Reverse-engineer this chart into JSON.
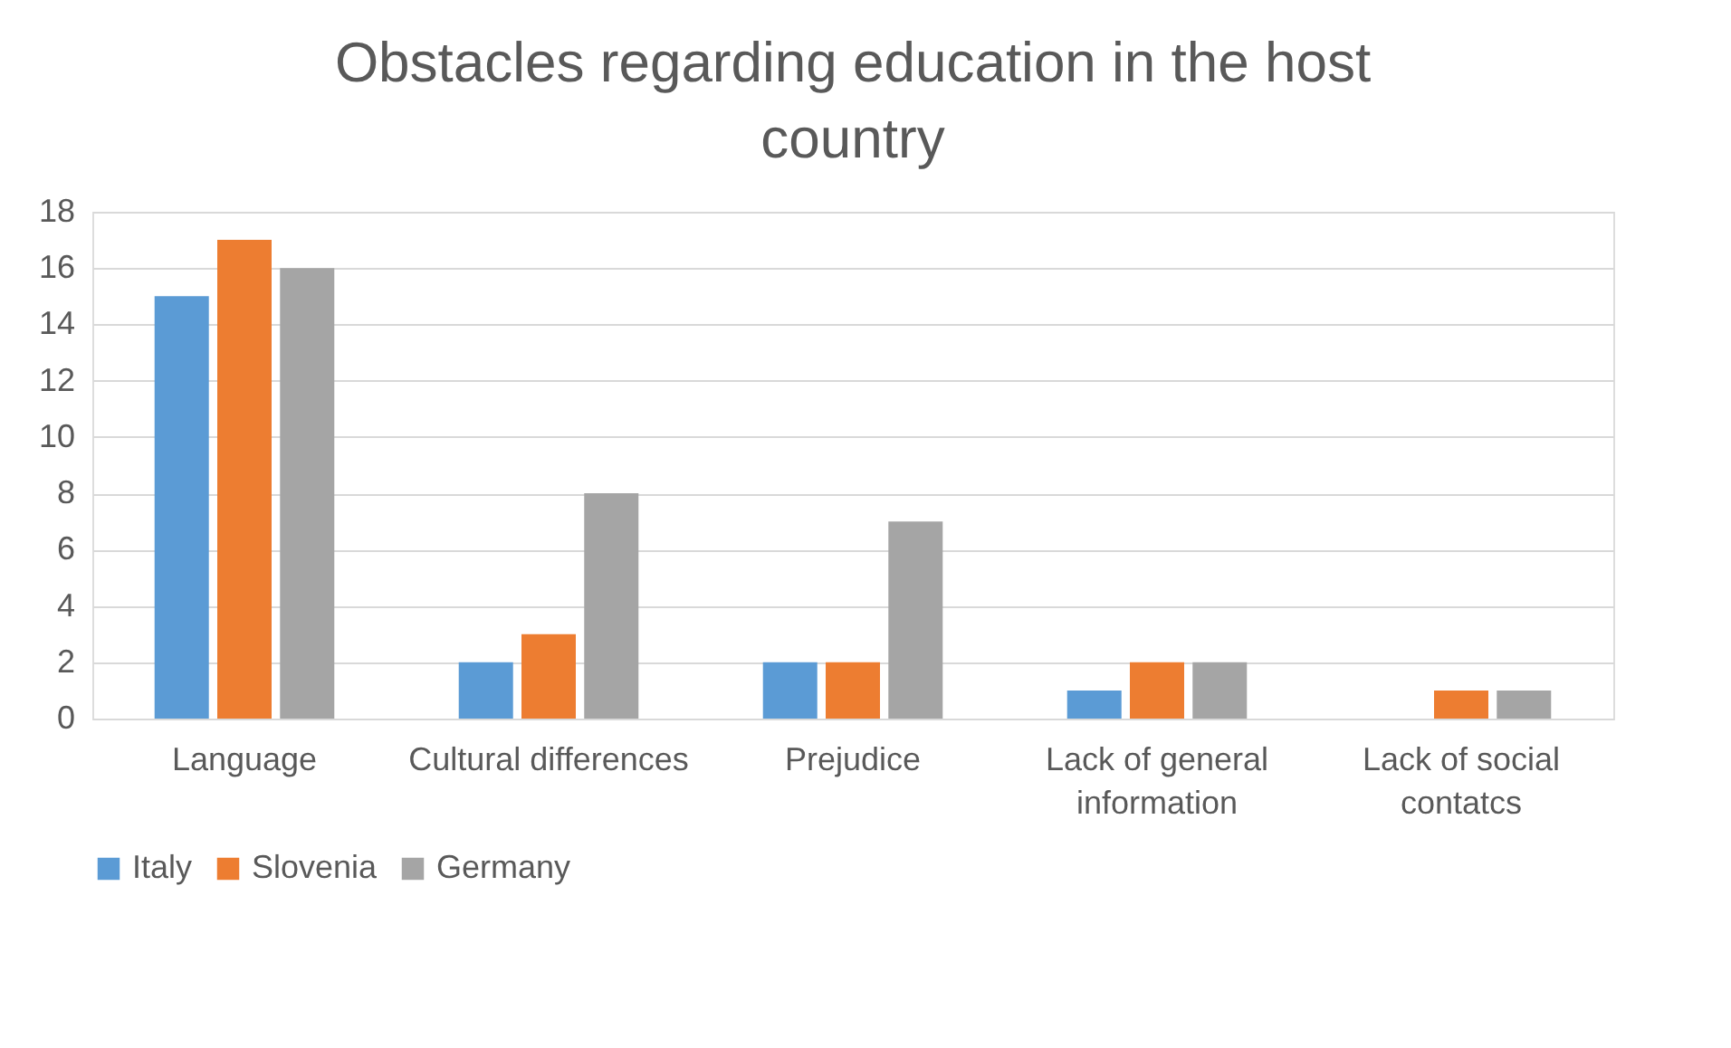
{
  "chart_data": {
    "type": "bar",
    "title": "Obstacles regarding education in the host country",
    "categories": [
      "Language",
      "Cultural differences",
      "Prejudice",
      "Lack of general information",
      "Lack of social contatcs"
    ],
    "series": [
      {
        "name": "Italy",
        "color": "#5b9bd5",
        "values": [
          15,
          2,
          2,
          1,
          0
        ]
      },
      {
        "name": "Slovenia",
        "color": "#ed7d31",
        "values": [
          17,
          3,
          2,
          2,
          1
        ]
      },
      {
        "name": "Germany",
        "color": "#a5a5a5",
        "values": [
          16,
          8,
          7,
          2,
          1
        ]
      }
    ],
    "ylim": [
      0,
      18
    ],
    "yticks": [
      0,
      2,
      4,
      6,
      8,
      10,
      12,
      14,
      16,
      18
    ],
    "grid": "y",
    "legend": "bottom"
  }
}
